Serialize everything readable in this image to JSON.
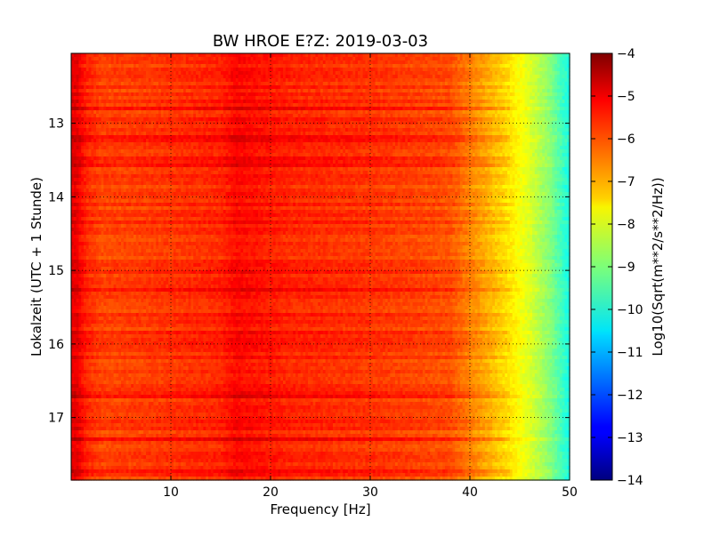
{
  "chart_data": {
    "type": "heatmap",
    "title": "BW HROE E?Z: 2019-03-03",
    "xlabel": "Frequency [Hz]",
    "ylabel": "Lokalzeit (UTC + 1 Stunde)",
    "xlim": [
      0,
      50
    ],
    "ylim": [
      17.85,
      12.05
    ],
    "xticks": [
      10,
      20,
      30,
      40,
      50
    ],
    "yticks": [
      13,
      14,
      15,
      16,
      17
    ],
    "grid": true,
    "colorbar": {
      "label": "Log10(Sqrt(m**2/s**2/Hz))",
      "range": [
        -14,
        -4
      ],
      "ticks": [
        -14,
        -13,
        -12,
        -11,
        -10,
        -9,
        -8,
        -7,
        -6,
        -5,
        -4
      ],
      "colormap": "jet"
    },
    "profile_hz": [
      0,
      0.5,
      1.5,
      3,
      8,
      15,
      16.5,
      22,
      30,
      38,
      40,
      42,
      44,
      46,
      48,
      49.5,
      50
    ],
    "profile_log10": [
      -5.1,
      -5.0,
      -5.6,
      -5.9,
      -5.8,
      -5.6,
      -5.3,
      -5.6,
      -5.75,
      -6.0,
      -6.5,
      -7.0,
      -7.5,
      -8.1,
      -8.9,
      -9.8,
      -10.0
    ]
  }
}
